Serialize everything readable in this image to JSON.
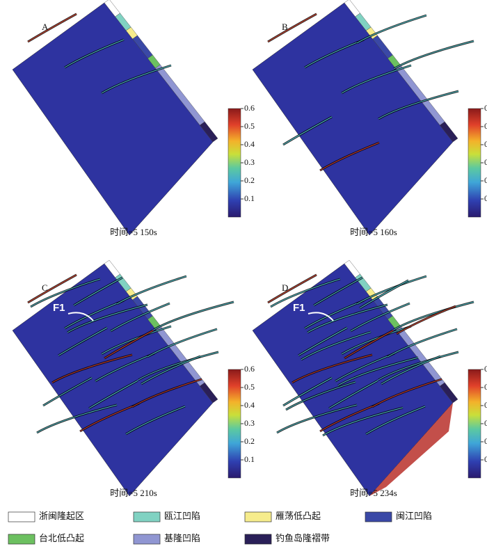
{
  "panels": [
    {
      "label": "A",
      "caption": "时间=5 150s"
    },
    {
      "label": "B",
      "caption": "时间=5 160s"
    },
    {
      "label": "C",
      "caption": "时间=5 210s",
      "annotation": "F1"
    },
    {
      "label": "D",
      "caption": "时间=5 234s",
      "annotation": "F1"
    }
  ],
  "colorbar": {
    "lim": [
      0,
      0.6
    ],
    "ticks": [
      0.6,
      0.5,
      0.4,
      0.3,
      0.2,
      0.1
    ]
  },
  "legend": [
    {
      "name": "浙闽隆起区",
      "color": "#ffffff"
    },
    {
      "name": "瓯江凹陷",
      "color": "#80d2c2"
    },
    {
      "name": "雁荡低凸起",
      "color": "#f6ec8c"
    },
    {
      "name": "闽江凹陷",
      "color": "#3a48a6"
    },
    {
      "name": "台北低凸起",
      "color": "#6cc060"
    },
    {
      "name": "基隆凹陷",
      "color": "#9096d2"
    },
    {
      "name": "钓鱼岛隆褶带",
      "color": "#2a1f58"
    }
  ]
}
